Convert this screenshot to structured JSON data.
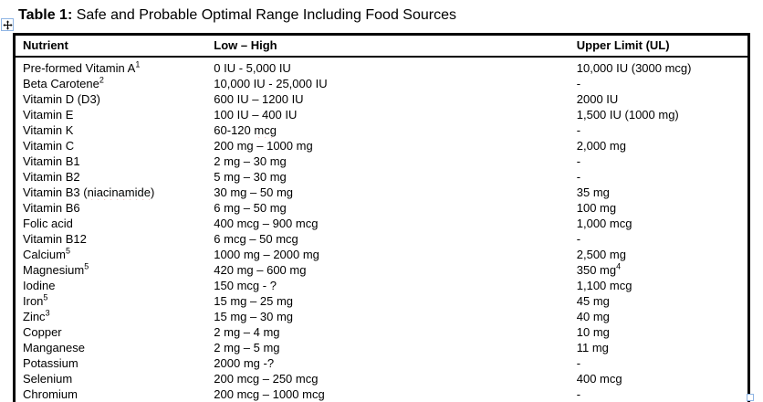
{
  "caption": {
    "label": "Table 1:",
    "rest": " Safe and Probable Optimal Range Including Food Sources"
  },
  "colors": {
    "text": "#000000",
    "table_border": "#000000",
    "spellcheck_underline": "#e00000",
    "handle_border": "#8eb4e3"
  },
  "icons": {
    "move_handle": "four-way-move-arrow",
    "resize_handle": "table-resize-square"
  },
  "table": {
    "headers": [
      "Nutrient",
      "Low – High",
      "Upper Limit (UL)"
    ],
    "rows": [
      {
        "nutrient": "Pre-formed Vitamin A",
        "nutrient_sup": "1",
        "range": "0 IU - 5,000 IU",
        "ul": "10,000 IU (3000 mcg)"
      },
      {
        "nutrient": "Beta Carotene",
        "nutrient_sup": "2",
        "range": "10,000 IU - 25,000 IU",
        "ul": "-"
      },
      {
        "nutrient": "Vitamin D (D3)",
        "range": "600 IU – 1200 IU",
        "ul": "2000 IU"
      },
      {
        "nutrient": "Vitamin E",
        "range": "100 IU – 400 IU",
        "ul": "1,500 IU (1000 mg)"
      },
      {
        "nutrient": "Vitamin K",
        "range": "60-120 mcg",
        "range_squiggle": "mcg",
        "ul": "-"
      },
      {
        "nutrient": "Vitamin C",
        "range": "200 mg – 1000 mg",
        "ul": "2,000 mg"
      },
      {
        "nutrient": "Vitamin B1",
        "range": "2 mg – 30 mg",
        "ul": "-"
      },
      {
        "nutrient": "Vitamin B2",
        "range": "5 mg – 30 mg",
        "ul": "-"
      },
      {
        "nutrient": "Vitamin B3 (niacinamide)",
        "nutrient_squiggle": "niacinamide",
        "range": "30 mg – 50 mg",
        "ul": "35 mg"
      },
      {
        "nutrient": "Vitamin B6",
        "range": "6 mg – 50 mg",
        "ul": "100 mg"
      },
      {
        "nutrient": "Folic acid",
        "range": "400 mcg – 900 mcg",
        "ul": "1,000 mcg"
      },
      {
        "nutrient": "Vitamin B12",
        "range": "6 mcg – 50 mcg",
        "ul": "-"
      },
      {
        "nutrient": "Calcium",
        "nutrient_sup": "5",
        "range": "1000 mg – 2000 mg",
        "ul": "2,500 mg"
      },
      {
        "nutrient": "Magnesium",
        "nutrient_sup": "5",
        "range": "420 mg – 600 mg",
        "ul": "350 mg",
        "ul_sup": "4"
      },
      {
        "nutrient": "Iodine",
        "range": "150 mcg - ?",
        "ul": "1,100 mcg"
      },
      {
        "nutrient": "Iron",
        "nutrient_sup": "5",
        "range": "15 mg – 25 mg",
        "ul": "45 mg"
      },
      {
        "nutrient": "Zinc",
        "nutrient_sup": "3",
        "range": "15 mg – 30 mg",
        "ul": "40 mg"
      },
      {
        "nutrient": "Copper",
        "range": "2 mg – 4 mg",
        "ul": "10 mg"
      },
      {
        "nutrient": "Manganese",
        "range": "2 mg – 5 mg",
        "ul": "11 mg"
      },
      {
        "nutrient": "Potassium",
        "range": "2000 mg -?",
        "ul": "-"
      },
      {
        "nutrient": "Selenium",
        "range": "200 mcg – 250 mcg",
        "ul": "400 mcg"
      },
      {
        "nutrient": "Chromium",
        "range": "200 mcg – 1000 mcg",
        "ul": "-"
      }
    ]
  }
}
